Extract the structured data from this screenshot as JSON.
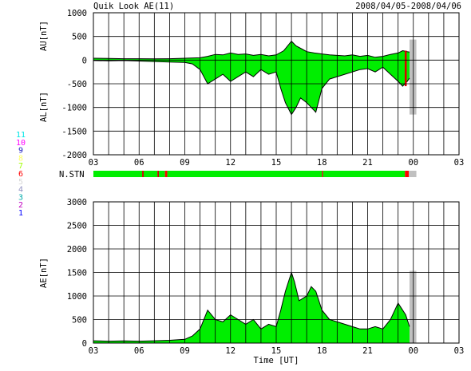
{
  "header": {
    "title": "Quik Look AE(11)",
    "date_range": "2008/04/05-2008/04/06"
  },
  "colors": {
    "fill": "#00ee00",
    "outline": "#000000",
    "grid": "#000000",
    "gap": "#c0c0c0",
    "marker": "#dd0000"
  },
  "station_legend": [
    {
      "label": "11",
      "color": "#00e5e5"
    },
    {
      "label": "10",
      "color": "#ff00ff"
    },
    {
      "label": "9",
      "color": "#2020c0"
    },
    {
      "label": "8",
      "color": "#ffff66"
    },
    {
      "label": "7",
      "color": "#a0ff00"
    },
    {
      "label": "6",
      "color": "#ff0000"
    },
    {
      "label": "5",
      "color": "#d8d8d8"
    },
    {
      "label": "4",
      "color": "#9090c0"
    },
    {
      "label": "3",
      "color": "#00aaaa"
    },
    {
      "label": "2",
      "color": "#c000c0"
    },
    {
      "label": "1",
      "color": "#0000ff"
    }
  ],
  "chart_data": [
    {
      "type": "area",
      "panel": "AU/AL",
      "ylabel_upper": "AU[nT]",
      "ylabel_lower": "AL[nT]",
      "ylim": [
        -2000,
        1000
      ],
      "yticks": [
        "1000",
        "500",
        "0",
        "-500",
        "-1000",
        "-1500",
        "-2000"
      ],
      "xlim_hours": [
        3,
        27
      ],
      "xticks": [
        "03",
        "06",
        "09",
        "12",
        "15",
        "18",
        "21",
        "00",
        "03"
      ],
      "grid": true,
      "data_end_hour": 23.75,
      "markers_hours": [
        23.5
      ],
      "series": [
        {
          "name": "AU[nT]",
          "x": [
            3.0,
            4.0,
            5.0,
            6.0,
            7.0,
            8.0,
            9.0,
            10.0,
            10.5,
            11.0,
            11.5,
            12.0,
            12.5,
            13.0,
            13.5,
            14.0,
            14.5,
            15.0,
            15.5,
            16.0,
            16.3,
            16.6,
            17.0,
            17.5,
            18.0,
            18.5,
            19.0,
            19.5,
            20.0,
            20.5,
            21.0,
            21.5,
            22.0,
            22.5,
            23.0,
            23.3,
            23.6,
            23.75
          ],
          "y": [
            40,
            35,
            30,
            30,
            25,
            30,
            40,
            50,
            80,
            120,
            110,
            150,
            120,
            130,
            100,
            120,
            90,
            110,
            200,
            400,
            300,
            250,
            180,
            150,
            130,
            110,
            100,
            90,
            110,
            80,
            100,
            60,
            80,
            120,
            150,
            200,
            180,
            170
          ]
        },
        {
          "name": "AL[nT]",
          "x": [
            3.0,
            4.0,
            5.0,
            6.0,
            7.0,
            8.0,
            9.0,
            9.5,
            10.0,
            10.5,
            11.0,
            11.5,
            12.0,
            12.5,
            13.0,
            13.5,
            14.0,
            14.5,
            15.0,
            15.3,
            15.6,
            16.0,
            16.3,
            16.6,
            17.0,
            17.3,
            17.6,
            18.0,
            18.5,
            19.0,
            19.5,
            20.0,
            20.5,
            21.0,
            21.5,
            22.0,
            22.5,
            23.0,
            23.3,
            23.6,
            23.75
          ],
          "y": [
            -10,
            -15,
            -10,
            -20,
            -30,
            -40,
            -50,
            -80,
            -200,
            -500,
            -400,
            -300,
            -450,
            -350,
            -250,
            -350,
            -200,
            -300,
            -250,
            -600,
            -900,
            -1150,
            -1000,
            -800,
            -900,
            -1000,
            -1100,
            -600,
            -400,
            -350,
            -300,
            -250,
            -200,
            -180,
            -250,
            -150,
            -300,
            -450,
            -550,
            -450,
            -380
          ]
        }
      ]
    },
    {
      "type": "bar",
      "panel": "N.STN",
      "label": "N.STN",
      "xlim_hours": [
        3,
        27
      ],
      "xticks": [
        "03",
        "06",
        "09",
        "12",
        "15",
        "18",
        "21",
        "00",
        "03"
      ],
      "segments": [
        {
          "start": 3.0,
          "end": 6.2,
          "color": "#00ee00"
        },
        {
          "start": 6.2,
          "end": 6.3,
          "color": "#cc0000"
        },
        {
          "start": 6.3,
          "end": 7.2,
          "color": "#00ee00"
        },
        {
          "start": 7.2,
          "end": 7.3,
          "color": "#cc0000"
        },
        {
          "start": 7.3,
          "end": 7.7,
          "color": "#00ee00"
        },
        {
          "start": 7.7,
          "end": 7.85,
          "color": "#ff0000"
        },
        {
          "start": 7.85,
          "end": 18.0,
          "color": "#00ee00"
        },
        {
          "start": 18.0,
          "end": 18.08,
          "color": "#cc0000"
        },
        {
          "start": 18.08,
          "end": 23.45,
          "color": "#00ee00"
        },
        {
          "start": 23.45,
          "end": 23.7,
          "color": "#ff0000"
        },
        {
          "start": 23.7,
          "end": 24.2,
          "color": "#c0c0c0"
        }
      ]
    },
    {
      "type": "area",
      "panel": "AE",
      "ylabel": "AE[nT]",
      "xlabel": "Time [UT]",
      "ylim": [
        0,
        3000
      ],
      "yticks": [
        "3000",
        "2500",
        "2000",
        "1500",
        "1000",
        "500",
        "0"
      ],
      "xlim_hours": [
        3,
        27
      ],
      "xticks": [
        "03",
        "06",
        "09",
        "12",
        "15",
        "18",
        "21",
        "00",
        "03"
      ],
      "grid": true,
      "data_end_hour": 23.75,
      "series": [
        {
          "name": "AE[nT]",
          "x": [
            3.0,
            4.0,
            5.0,
            6.0,
            7.0,
            8.0,
            9.0,
            9.5,
            10.0,
            10.5,
            11.0,
            11.5,
            12.0,
            12.5,
            13.0,
            13.5,
            14.0,
            14.5,
            15.0,
            15.3,
            15.6,
            16.0,
            16.2,
            16.5,
            17.0,
            17.3,
            17.6,
            18.0,
            18.5,
            19.0,
            19.5,
            20.0,
            20.5,
            21.0,
            21.5,
            22.0,
            22.5,
            23.0,
            23.2,
            23.5,
            23.75
          ],
          "y": [
            50,
            40,
            45,
            40,
            50,
            60,
            80,
            150,
            300,
            700,
            500,
            450,
            600,
            500,
            400,
            500,
            300,
            400,
            350,
            700,
            1100,
            1500,
            1300,
            900,
            1000,
            1200,
            1100,
            700,
            500,
            450,
            400,
            350,
            300,
            300,
            350,
            300,
            500,
            850,
            750,
            600,
            350
          ]
        }
      ]
    }
  ]
}
